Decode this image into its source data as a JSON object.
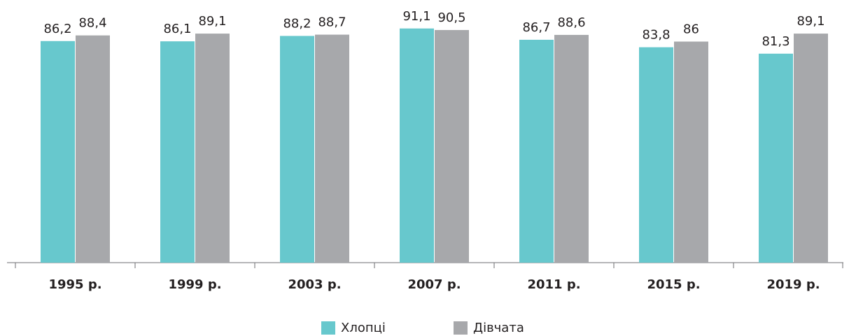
{
  "chart_data": {
    "type": "bar",
    "categories": [
      "1995 р.",
      "1999 р.",
      "2003 р.",
      "2007 р.",
      "2011 р.",
      "2015 р.",
      "2019 р."
    ],
    "series": [
      {
        "name": "Хлопці",
        "color": "#67c8cd",
        "values": [
          86.2,
          86.1,
          88.2,
          91.1,
          86.7,
          83.8,
          81.3
        ],
        "value_labels": [
          "86,2",
          "86,1",
          "88,2",
          "91,1",
          "86,7",
          "83,8",
          "81,3"
        ]
      },
      {
        "name": "Дівчата",
        "color": "#a7a8ab",
        "values": [
          88.4,
          89.1,
          88.7,
          90.5,
          88.6,
          86,
          89.1
        ],
        "value_labels": [
          "88,4",
          "89,1",
          "88,7",
          "90,5",
          "88,6",
          "86",
          "89,1"
        ]
      }
    ],
    "ylim": [
      0,
      100
    ],
    "legend": "bottom"
  }
}
